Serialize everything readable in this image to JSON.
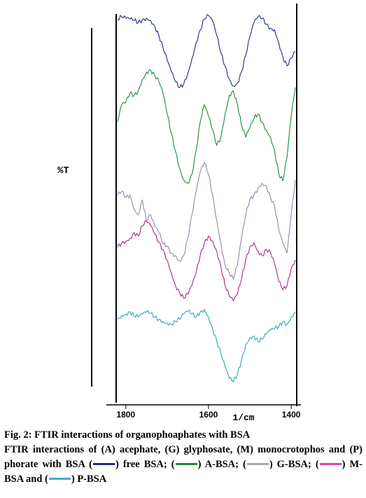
{
  "chart_data": {
    "type": "line",
    "ylabel": "%T",
    "xlabel": "1/cm",
    "xlim": [
      1820,
      1390
    ],
    "x_ticks": [
      1800,
      1600,
      1400
    ],
    "grid": false,
    "x": [
      1820,
      1810,
      1800,
      1790,
      1780,
      1770,
      1760,
      1750,
      1740,
      1730,
      1720,
      1710,
      1700,
      1690,
      1680,
      1670,
      1660,
      1650,
      1640,
      1630,
      1620,
      1610,
      1600,
      1590,
      1580,
      1570,
      1560,
      1550,
      1540,
      1530,
      1520,
      1510,
      1500,
      1490,
      1480,
      1470,
      1460,
      1450,
      1440,
      1430,
      1420,
      1410,
      1400,
      1390
    ],
    "series": [
      {
        "name": "free BSA",
        "color": "#1f2a8a",
        "values": [
          0.95,
          0.98,
          0.96,
          0.95,
          0.93,
          0.9,
          0.94,
          0.96,
          0.93,
          0.85,
          0.72,
          0.55,
          0.38,
          0.22,
          0.08,
          0.0,
          0.05,
          0.2,
          0.4,
          0.62,
          0.8,
          0.95,
          1.0,
          0.92,
          0.72,
          0.48,
          0.3,
          0.12,
          0.02,
          0.06,
          0.22,
          0.45,
          0.7,
          0.9,
          0.98,
          0.96,
          0.88,
          0.82,
          0.8,
          0.62,
          0.42,
          0.3,
          0.4,
          0.5
        ]
      },
      {
        "name": "A-BSA",
        "color": "#1a8a3a",
        "values": [
          0.55,
          0.7,
          0.72,
          0.8,
          0.78,
          0.82,
          0.92,
          0.98,
          1.0,
          0.95,
          0.9,
          0.8,
          0.62,
          0.45,
          0.3,
          0.15,
          0.05,
          0.02,
          0.1,
          0.3,
          0.55,
          0.7,
          0.6,
          0.48,
          0.35,
          0.42,
          0.62,
          0.78,
          0.82,
          0.7,
          0.52,
          0.42,
          0.5,
          0.58,
          0.62,
          0.55,
          0.48,
          0.42,
          0.3,
          0.1,
          0.04,
          0.25,
          0.6,
          0.85
        ]
      },
      {
        "name": "G-BSA",
        "color": "#8a8ab0",
        "values": [
          0.72,
          0.75,
          0.7,
          0.72,
          0.6,
          0.55,
          0.68,
          0.5,
          0.55,
          0.45,
          0.4,
          0.3,
          0.28,
          0.22,
          0.2,
          0.15,
          0.2,
          0.35,
          0.55,
          0.75,
          0.92,
          1.0,
          0.9,
          0.72,
          0.5,
          0.3,
          0.12,
          0.05,
          0.0,
          0.12,
          0.35,
          0.55,
          0.68,
          0.72,
          0.78,
          0.82,
          0.8,
          0.7,
          0.62,
          0.42,
          0.3,
          0.22,
          0.55,
          0.85
        ]
      },
      {
        "name": "M-BSA",
        "color": "#a02a8a",
        "values": [
          0.65,
          0.7,
          0.72,
          0.75,
          0.82,
          0.78,
          0.9,
          0.95,
          0.9,
          0.8,
          0.7,
          0.62,
          0.5,
          0.35,
          0.2,
          0.12,
          0.05,
          0.1,
          0.2,
          0.35,
          0.55,
          0.7,
          0.78,
          0.72,
          0.6,
          0.42,
          0.2,
          0.08,
          0.02,
          0.1,
          0.28,
          0.5,
          0.65,
          0.7,
          0.6,
          0.55,
          0.62,
          0.58,
          0.45,
          0.25,
          0.15,
          0.2,
          0.4,
          0.5
        ]
      },
      {
        "name": "P-BSA",
        "color": "#2aa8b0",
        "values": [
          0.85,
          0.9,
          0.92,
          0.95,
          0.9,
          0.88,
          0.92,
          0.95,
          0.93,
          0.88,
          0.85,
          0.82,
          0.8,
          0.78,
          0.82,
          0.85,
          0.92,
          0.96,
          0.92,
          0.88,
          0.95,
          0.98,
          0.88,
          0.72,
          0.55,
          0.38,
          0.2,
          0.05,
          0.0,
          0.1,
          0.3,
          0.5,
          0.6,
          0.62,
          0.55,
          0.58,
          0.65,
          0.7,
          0.72,
          0.75,
          0.82,
          0.78,
          0.88,
          0.95
        ]
      }
    ]
  },
  "caption": {
    "title": "Fig. 2: FTIR interactions of organophoaphates with BSA",
    "text_1": "FTIR interactions of (A) acephate, (G) glyphosate, (M) monocrotophos and (P) phorate with BSA (",
    "text_2": ") free BSA;",
    "item_a": ") A-BSA; (",
    "item_g": ") G-BSA; (",
    "item_m": ") M-BSA and (",
    "item_p": ") P-BSA",
    "open_paren": "(",
    "swatch_colors": [
      "#1f2a8a",
      "#1a8a3a",
      "#a8a8a8",
      "#e040c0",
      "#4aa8c8"
    ]
  }
}
